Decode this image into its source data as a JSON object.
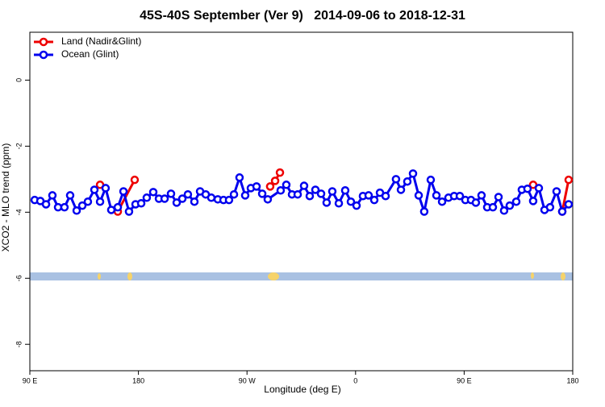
{
  "chart_data": {
    "type": "line",
    "title": "45S-40S September (Ver 9)   2014-09-06 to 2018-12-31",
    "xlabel": "Longitude (deg E)",
    "ylabel": "XCO2 - MLO trend (ppm)",
    "xlim": [
      90,
      540
    ],
    "xticks": [
      {
        "value": 90,
        "label": "90 E"
      },
      180,
      {
        "value": 270,
        "label": "90 W"
      },
      {
        "value": 360,
        "label": "0"
      },
      {
        "value": 450,
        "label": "90 E"
      },
      {
        "value": 540,
        "label": "180"
      }
    ],
    "ylim": [
      -8.8,
      1.45
    ],
    "yticks": [
      0,
      -2,
      -4,
      -6,
      -8
    ],
    "legend": "top-left",
    "series": [
      {
        "name": "Land (Nadir&Glint)",
        "color": "#ee0000",
        "x": [
          148.2,
          null,
          162.9,
          176.9,
          null,
          289.2,
          293.3,
          297.3,
          null,
          507.2,
          null,
          531.3,
          536.6
        ],
        "values": [
          -3.17,
          null,
          -3.98,
          -3.02,
          null,
          -3.22,
          -3.05,
          -2.8,
          null,
          -3.17,
          null,
          -3.98,
          -3.02
        ]
      },
      {
        "name": "Ocean (Glint)",
        "color": "#0000ee",
        "x": [
          94.0,
          98.7,
          103.4,
          108.7,
          113.4,
          118.7,
          123.4,
          128.8,
          133.5,
          138.1,
          143.5,
          148.2,
          152.8,
          157.5,
          162.9,
          167.6,
          172.2,
          177.6,
          182.3,
          186.9,
          192.3,
          197.0,
          201.7,
          207.0,
          211.7,
          216.4,
          221.0,
          226.4,
          231.1,
          235.8,
          240.4,
          245.8,
          250.5,
          255.1,
          259.2,
          263.8,
          268.5,
          273.2,
          277.9,
          282.6,
          287.2,
          297.9,
          302.6,
          307.3,
          312.0,
          317.3,
          322.0,
          326.7,
          331.4,
          336.0,
          340.7,
          346.1,
          351.4,
          356.1,
          360.8,
          366.1,
          370.8,
          375.5,
          380.2,
          384.9,
          393.5,
          397.6,
          402.9,
          407.6,
          412.3,
          416.9,
          422.3,
          427.0,
          431.7,
          437.0,
          441.7,
          446.4,
          451.0,
          455.7,
          459.7,
          464.4,
          469.1,
          473.8,
          478.5,
          483.1,
          487.8,
          493.2,
          497.8,
          502.5,
          507.2,
          511.9,
          516.6,
          521.2,
          526.6,
          531.3,
          536.6
        ],
        "values": [
          -3.63,
          -3.66,
          -3.76,
          -3.49,
          -3.85,
          -3.85,
          -3.49,
          -3.95,
          -3.8,
          -3.68,
          -3.32,
          -3.68,
          -3.27,
          -3.93,
          -3.85,
          -3.37,
          -3.98,
          -3.76,
          -3.73,
          -3.56,
          -3.39,
          -3.59,
          -3.59,
          -3.44,
          -3.71,
          -3.59,
          -3.46,
          -3.68,
          -3.37,
          -3.46,
          -3.56,
          -3.61,
          -3.63,
          -3.63,
          -3.46,
          -2.95,
          -3.49,
          -3.27,
          -3.22,
          -3.44,
          -3.61,
          -3.34,
          -3.17,
          -3.46,
          -3.46,
          -3.2,
          -3.51,
          -3.32,
          -3.44,
          -3.71,
          -3.37,
          -3.73,
          -3.34,
          -3.68,
          -3.8,
          -3.51,
          -3.49,
          -3.63,
          -3.41,
          -3.51,
          -3.0,
          -3.32,
          -3.07,
          -2.83,
          -3.49,
          -3.98,
          -3.02,
          -3.49,
          -3.68,
          -3.56,
          -3.51,
          -3.51,
          -3.63,
          -3.63,
          -3.71,
          -3.49,
          -3.85,
          -3.85,
          -3.54,
          -3.95,
          -3.8,
          -3.68,
          -3.32,
          -3.29,
          -3.66,
          -3.27,
          -3.93,
          -3.85,
          -3.37,
          -3.98,
          -3.76
        ]
      }
    ]
  }
}
